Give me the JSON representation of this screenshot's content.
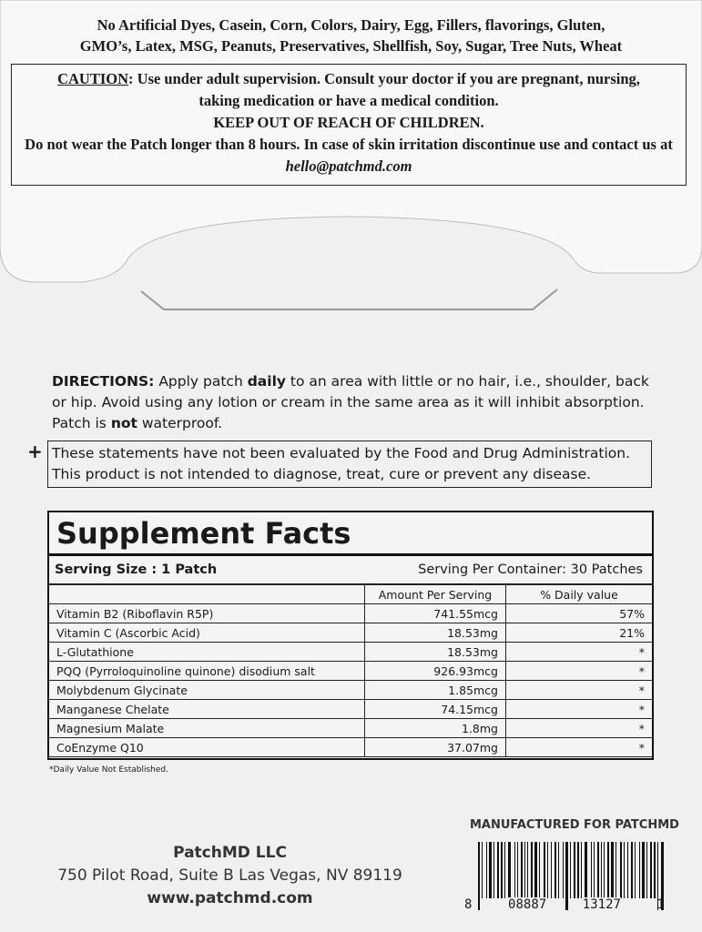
{
  "allergens": [
    "No Artificial Dyes, Casein, Corn, Colors, Dairy, Egg, Fillers, flavorings, Gluten,",
    "GMO’s, Latex, MSG, Peanuts, Preservatives, Shellfish, Soy, Sugar, Tree Nuts, Wheat"
  ],
  "caution": {
    "label": "CAUTION",
    "text": ": Use under adult supervision. Consult your doctor if you are pregnant, nursing, taking medication or have a medical condition.",
    "keep_out": "KEEP OUT OF REACH OF CHILDREN.",
    "patch_text": "Do not wear the Patch longer than 8 hours. In case of skin irritation discontinue use and contact us at ",
    "email": "hello@patchmd.com"
  },
  "directions": {
    "label": "DIRECTIONS:",
    "part1": " Apply patch ",
    "emphasis1": "daily",
    "part2": " to an area with little or no hair, i.e., shoulder, back or hip. Avoid using any lotion or cream in the same area as it will inhibit absorption. Patch is ",
    "emphasis2": "not",
    "part3": " waterproof."
  },
  "disclaimer": {
    "mark": "+",
    "text": "These statements have not been evaluated by the Food and Drug Administration. This product is not intended to diagnose, treat, cure or prevent any disease."
  },
  "supplement_facts": {
    "title": "Supplement Facts",
    "serving_size": "Serving Size : 1 Patch",
    "servings_per_container": "Serving Per Container: 30 Patches",
    "headers": [
      "Amount Per Serving",
      "% Daily value"
    ],
    "rows": [
      [
        "Vitamin B2 (Riboflavin R5P)",
        "741.55mcg",
        "57%"
      ],
      [
        "Vitamin C (Ascorbic Acid)",
        "18.53mg",
        "21%"
      ],
      [
        "L-Glutathione",
        "18.53mg",
        "*"
      ],
      [
        "PQQ (Pyrroloquinoline quinone) disodium salt",
        "926.93mcg",
        "*"
      ],
      [
        "Molybdenum Glycinate",
        "1.85mcg",
        "*"
      ],
      [
        "Manganese Chelate",
        "74.15mcg",
        "*"
      ],
      [
        "Magnesium Malate",
        "1.8mg",
        "*"
      ],
      [
        "CoEnzyme Q10",
        "37.07mg",
        "*"
      ]
    ],
    "footnote": "*Daily Value Not Established."
  },
  "manufacturer": {
    "name": "PatchMD LLC",
    "address": "750 Pilot Road, Suite B Las Vegas, NV 89119",
    "website": "www.patchmd.com"
  },
  "barcode": {
    "heading": "MANUFACTURED FOR PATCHMD",
    "digits": [
      "8",
      "08887",
      "13127",
      "1"
    ]
  }
}
